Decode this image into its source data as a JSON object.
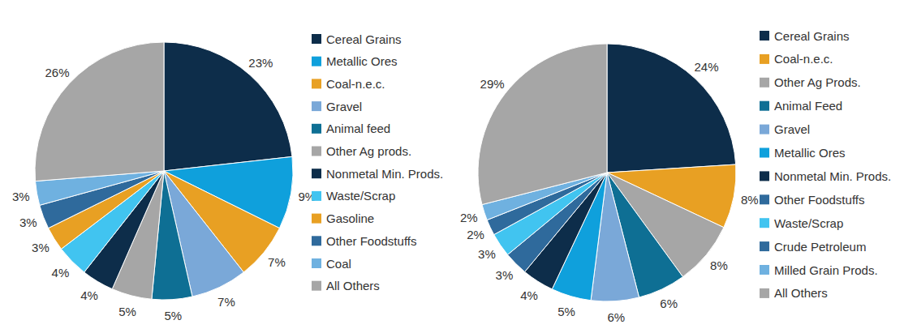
{
  "chart_data": [
    {
      "type": "pie",
      "categories": [
        "Cereal Grains",
        "Metallic Ores",
        "Coal-n.e.c.",
        "Gravel",
        "Animal feed",
        "Other Ag prods.",
        "Nonmetal Min. Prods.",
        "Waste/Scrap",
        "Gasoline",
        "Other Foodstuffs",
        "Coal",
        "All Others"
      ],
      "values": [
        23,
        9,
        7,
        7,
        5,
        5,
        4,
        4,
        3,
        3,
        3,
        26
      ],
      "value_labels": [
        "23%",
        "9%",
        "7%",
        "7%",
        "5%",
        "5%",
        "4%",
        "4%",
        "3%",
        "3%",
        "3%",
        "26%"
      ],
      "colors": [
        "#0d2d4a",
        "#0fa0dc",
        "#e8a023",
        "#7aa8d8",
        "#0e6f94",
        "#a6a6a6",
        "#0d2d4a",
        "#41c4f0",
        "#e8a023",
        "#2f6a9c",
        "#6fb1e0",
        "#a6a6a6"
      ],
      "data_labels": true,
      "legend": "right"
    },
    {
      "type": "pie",
      "categories": [
        "Cereal Grains",
        "Coal-n.e.c.",
        "Other Ag Prods.",
        "Animal Feed",
        "Gravel",
        "Metallic Ores",
        "Nonmetal Min. Prods.",
        "Other Foodstuffs",
        "Waste/Scrap",
        "Crude Petroleum",
        "Milled Grain Prods.",
        "All Others"
      ],
      "values": [
        24,
        8,
        8,
        6,
        6,
        5,
        4,
        3,
        3,
        2,
        2,
        29
      ],
      "value_labels": [
        "24%",
        "8%",
        "8%",
        "6%",
        "6%",
        "5%",
        "4%",
        "3%",
        "3%",
        "2%",
        "2%",
        "29%"
      ],
      "colors": [
        "#0d2d4a",
        "#e8a023",
        "#a6a6a6",
        "#0e6f94",
        "#7aa8d8",
        "#0fa0dc",
        "#0d2d4a",
        "#2f6a9c",
        "#41c4f0",
        "#2f6a9c",
        "#6fb1e0",
        "#a6a6a6"
      ],
      "data_labels": true,
      "legend": "right"
    }
  ]
}
